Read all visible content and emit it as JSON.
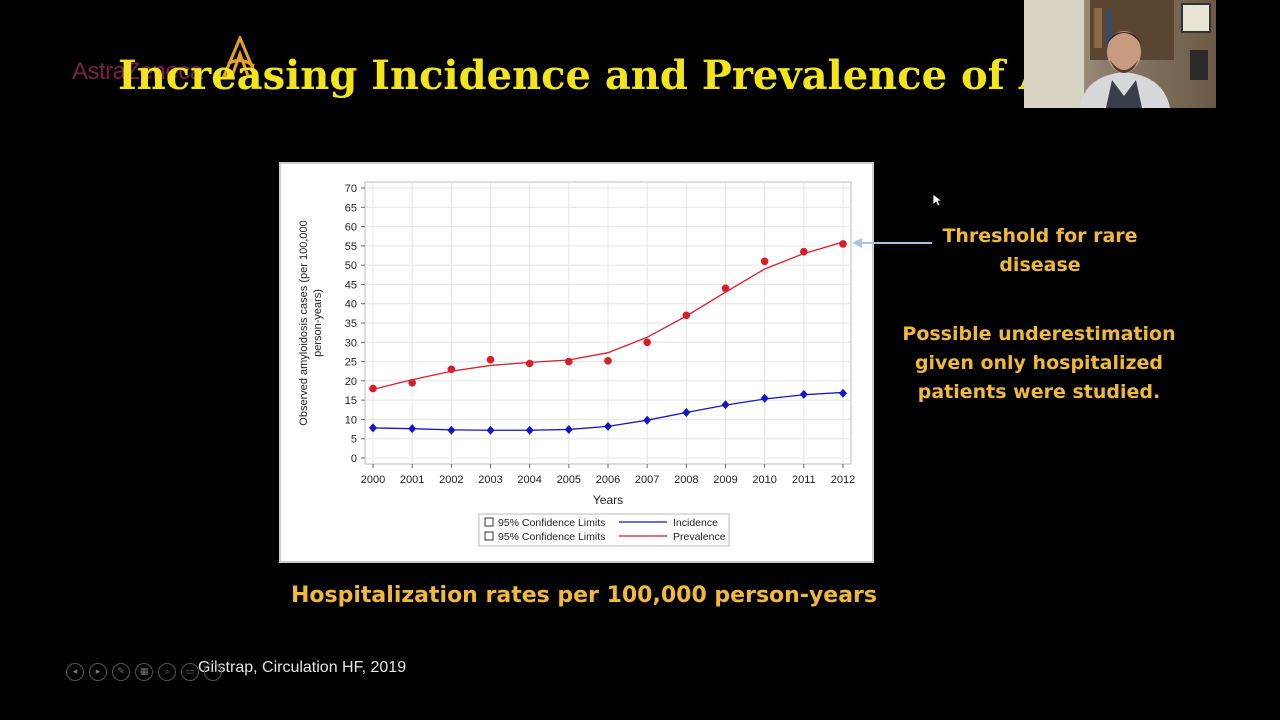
{
  "slide": {
    "title": "Increasing Incidence and Prevalence of Amy",
    "logo_text": "AstraZeneca",
    "threshold_label": "Threshold for rare disease",
    "note": "Possible underestimation given only hospitalized patients were studied.",
    "caption": "Hospitalization rates per 100,000 person-years",
    "citation": "Gilstrap, Circulation HF, 2019"
  },
  "colors": {
    "title": "#f2e51c",
    "annotation": "#f0b93a",
    "incidence": "#1414c8",
    "prevalence": "#d81e28",
    "arrow": "#a8c4e0"
  },
  "toolbar": {
    "buttons": [
      "previous-icon",
      "next-icon",
      "pen-icon",
      "slides-icon",
      "zoom-icon",
      "more-icon",
      "subtitles-icon",
      "options-icon"
    ]
  },
  "chart_data": {
    "type": "line",
    "xlabel": "Years",
    "ylabel": "Observed amyloidosis cases (per 100,000 person-years)",
    "ylim": [
      0,
      70
    ],
    "yticks": [
      0,
      5,
      10,
      15,
      20,
      25,
      30,
      35,
      40,
      45,
      50,
      55,
      60,
      65,
      70
    ],
    "grid": true,
    "legend_position": "bottom",
    "legend": [
      {
        "label": "95% Confidence Limits",
        "marker": "square"
      },
      {
        "label": "Incidence",
        "marker": "line",
        "series": "Incidence"
      },
      {
        "label": "95% Confidence Limits",
        "marker": "square"
      },
      {
        "label": "Prevalence",
        "marker": "line",
        "series": "Prevalence"
      }
    ],
    "x": [
      2000,
      2001,
      2002,
      2003,
      2004,
      2005,
      2006,
      2007,
      2008,
      2009,
      2010,
      2011,
      2012
    ],
    "series": [
      {
        "name": "Prevalence",
        "marker": "circle",
        "points": [
          18,
          19.5,
          23,
          25.5,
          24.5,
          25,
          25.2,
          30,
          37,
          44,
          51,
          53.5,
          55.5
        ],
        "fit": [
          17.8,
          20.3,
          22.5,
          24,
          24.8,
          25.4,
          27.3,
          31.3,
          36.8,
          43,
          49,
          53,
          56
        ]
      },
      {
        "name": "Incidence",
        "marker": "diamond",
        "points": [
          7.8,
          7.6,
          7.2,
          7.2,
          7.2,
          7.4,
          8.2,
          9.8,
          11.8,
          13.8,
          15.5,
          16.5,
          16.8
        ],
        "fit": [
          7.8,
          7.6,
          7.3,
          7.2,
          7.2,
          7.4,
          8.2,
          9.8,
          11.8,
          13.7,
          15.3,
          16.4,
          17
        ]
      }
    ]
  }
}
